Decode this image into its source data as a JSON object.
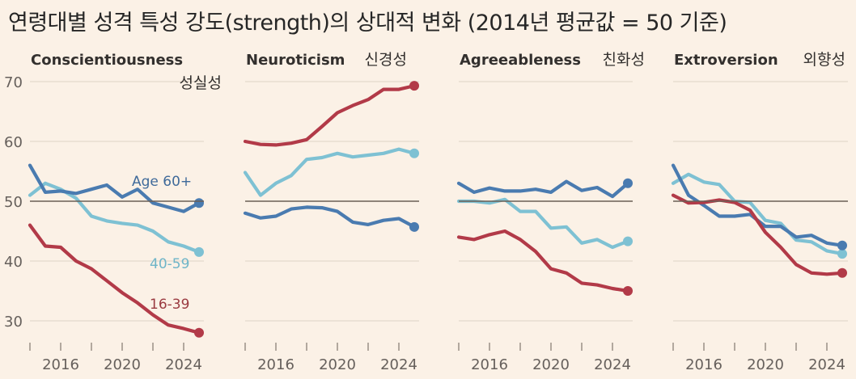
{
  "title": "연령대별 성격 특성 강도(strength)의 상대적 변화 (2014년 평균값 = 50 기준)",
  "colors": {
    "age_60_plus": "#4a7bb0",
    "age_40_59": "#7ec1d3",
    "age_16_39": "#b23a48",
    "baseline": "#6b5f55",
    "gridline": "#e8ddd1",
    "tick": "#8a8078"
  },
  "chart_data": [
    {
      "type": "line",
      "title": "Conscientiousness",
      "subtitle": "성실성",
      "x": [
        2014,
        2015,
        2016,
        2017,
        2018,
        2019,
        2020,
        2021,
        2022,
        2023,
        2024,
        2025
      ],
      "xticks": [
        "2016",
        "2020",
        "2024"
      ],
      "ylim": [
        27,
        71
      ],
      "yticks": [
        "70",
        "60",
        "50",
        "40",
        "30"
      ],
      "baseline": 50,
      "series": [
        {
          "name": "Age 60+",
          "key": "age_60_plus",
          "values": [
            56,
            51.5,
            51.7,
            51.3,
            52,
            52.7,
            50.7,
            52,
            49.7,
            49,
            48.3,
            49.7
          ],
          "label": "Age 60+"
        },
        {
          "name": "40-59",
          "key": "age_40_59",
          "values": [
            51,
            53,
            52,
            50.5,
            47.5,
            46.7,
            46.3,
            46,
            45,
            43.2,
            42.5,
            41.5
          ],
          "label": "40-59"
        },
        {
          "name": "16-39",
          "key": "age_16_39",
          "values": [
            46,
            42.5,
            42.3,
            40,
            38.7,
            36.7,
            34.7,
            33,
            31,
            29.3,
            28.7,
            28
          ],
          "label": "16-39"
        }
      ]
    },
    {
      "type": "line",
      "title": "Neuroticism",
      "subtitle": "신경성",
      "x": [
        2014,
        2015,
        2016,
        2017,
        2018,
        2019,
        2020,
        2021,
        2022,
        2023,
        2024,
        2025
      ],
      "xticks": [
        "2016",
        "2020",
        "2024"
      ],
      "ylim": [
        27,
        71
      ],
      "baseline": 50,
      "series": [
        {
          "name": "Age 60+",
          "key": "age_60_plus",
          "values": [
            48,
            47.2,
            47.5,
            48.7,
            49,
            48.9,
            48.3,
            46.5,
            46.1,
            46.8,
            47.1,
            45.7
          ]
        },
        {
          "name": "40-59",
          "key": "age_40_59",
          "values": [
            54.8,
            51,
            53,
            54.3,
            57,
            57.3,
            58,
            57.4,
            57.7,
            58,
            58.7,
            58
          ]
        },
        {
          "name": "16-39",
          "key": "age_16_39",
          "values": [
            60,
            59.5,
            59.4,
            59.7,
            60.3,
            62.5,
            64.8,
            66,
            67,
            68.7,
            68.7,
            69.3
          ]
        }
      ]
    },
    {
      "type": "line",
      "title": "Agreeableness",
      "subtitle": "친화성",
      "x": [
        2014,
        2015,
        2016,
        2017,
        2018,
        2019,
        2020,
        2021,
        2022,
        2023,
        2024,
        2025
      ],
      "xticks": [
        "2016",
        "2020",
        "2024"
      ],
      "ylim": [
        27,
        71
      ],
      "baseline": 50,
      "series": [
        {
          "name": "Age 60+",
          "key": "age_60_plus",
          "values": [
            53,
            51.5,
            52.2,
            51.7,
            51.7,
            52,
            51.5,
            53.3,
            51.8,
            52.3,
            50.8,
            53
          ]
        },
        {
          "name": "40-59",
          "key": "age_40_59",
          "values": [
            50,
            50,
            49.7,
            50.3,
            48.3,
            48.3,
            45.5,
            45.7,
            43,
            43.6,
            42.3,
            43.3
          ]
        },
        {
          "name": "16-39",
          "key": "age_16_39",
          "values": [
            44,
            43.6,
            44.4,
            45,
            43.6,
            41.6,
            38.7,
            38,
            36.3,
            36,
            35.4,
            35
          ]
        }
      ]
    },
    {
      "type": "line",
      "title": "Extroversion",
      "subtitle": "외향성",
      "x": [
        2014,
        2015,
        2016,
        2017,
        2018,
        2019,
        2020,
        2021,
        2022,
        2023,
        2024,
        2025
      ],
      "xticks": [
        "2016",
        "2020",
        "2024"
      ],
      "ylim": [
        27,
        71
      ],
      "baseline": 50,
      "series": [
        {
          "name": "Age 60+",
          "key": "age_60_plus",
          "values": [
            56,
            51,
            49.3,
            47.5,
            47.5,
            47.8,
            45.8,
            45.8,
            44,
            44.3,
            43,
            42.6
          ]
        },
        {
          "name": "40-59",
          "key": "age_40_59",
          "values": [
            53,
            54.5,
            53.2,
            52.8,
            50,
            49.8,
            46.8,
            46.3,
            43.5,
            43.2,
            41.7,
            41.2
          ]
        },
        {
          "name": "16-39",
          "key": "age_16_39",
          "values": [
            51,
            49.7,
            49.8,
            50.2,
            49.8,
            48.5,
            44.8,
            42.3,
            39.4,
            38,
            37.8,
            38
          ]
        }
      ]
    }
  ]
}
